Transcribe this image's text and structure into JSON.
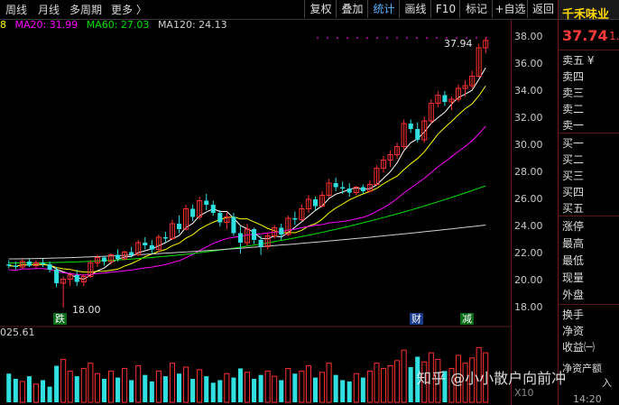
{
  "toolbar": {
    "tabs": [
      "周线",
      "月线",
      "多周期",
      "更多 〉"
    ],
    "buttons": [
      "复权",
      "叠加",
      "统计",
      "画线",
      "F10",
      "标记",
      "+自选",
      "返回"
    ],
    "active_button": "统计"
  },
  "ma": {
    "prefix": "8",
    "ma20": "MA20: 31.99",
    "ma60": "MA60: 27.03",
    "ma120": "MA120: 24.13",
    "colors": {
      "ma5": "#ffffff",
      "ma10": "#ffff00",
      "ma20": "#ff00ff",
      "ma60": "#00ff00",
      "ma120": "#cccccc"
    }
  },
  "price_axis": {
    "ticks": [
      "38.00",
      "36.00",
      "34.00",
      "32.00",
      "30.00",
      "28.00",
      "26.00",
      "24.00",
      "22.00",
      "20.00",
      "18.00"
    ]
  },
  "annotations": {
    "high_label": "37.94",
    "low_label": "18.00",
    "marker_die": "跌",
    "marker_cai": "财",
    "marker_jian": "减"
  },
  "quote": {
    "name": "千禾味业",
    "price": "37.74",
    "price_suffix": "1.",
    "ask_rows": [
      "卖五 ¥",
      "卖四",
      "卖三",
      "卖二",
      "卖一"
    ],
    "bid_rows": [
      "买一",
      "买二",
      "买三",
      "买四",
      "买五"
    ],
    "stat_rows": [
      "涨停",
      "最高",
      "最低",
      "现量",
      "外盘"
    ],
    "extra_rows": [
      "换手",
      "净资",
      "收益㈠"
    ],
    "bottom_rows": [
      "净资产额",
      "入"
    ],
    "time": "14:20"
  },
  "volume": {
    "label": "025.61",
    "scale": "X10"
  },
  "watermark": "知乎 @小小散户向前冲",
  "colors": {
    "up": "#ff3030",
    "down": "#30e0e0",
    "price": "#ff3a3a",
    "accent_blue": "#5ab4ff"
  },
  "chart_data": {
    "type": "candlestick",
    "y_range": [
      17.5,
      38.4
    ],
    "ohlc": [
      [
        21.2,
        21.5,
        20.9,
        21.1
      ],
      [
        21.1,
        21.4,
        20.8,
        21.0
      ],
      [
        21.0,
        21.6,
        20.9,
        21.4
      ],
      [
        21.4,
        21.6,
        21.0,
        21.1
      ],
      [
        21.1,
        21.5,
        20.9,
        21.3
      ],
      [
        21.3,
        21.6,
        21.0,
        21.2
      ],
      [
        21.2,
        21.4,
        20.6,
        20.8
      ],
      [
        20.8,
        21.0,
        19.5,
        19.8
      ],
      [
        19.8,
        20.3,
        18.0,
        20.1
      ],
      [
        20.1,
        20.6,
        19.6,
        20.4
      ],
      [
        20.4,
        20.8,
        19.6,
        19.9
      ],
      [
        19.9,
        20.5,
        19.6,
        20.3
      ],
      [
        20.3,
        21.5,
        20.2,
        21.3
      ],
      [
        21.3,
        21.9,
        21.0,
        21.7
      ],
      [
        21.7,
        21.8,
        21.1,
        21.4
      ],
      [
        21.4,
        22.0,
        21.2,
        21.9
      ],
      [
        21.9,
        22.3,
        21.4,
        21.6
      ],
      [
        21.6,
        22.2,
        21.5,
        22.1
      ],
      [
        22.1,
        22.5,
        21.7,
        21.9
      ],
      [
        21.9,
        23.0,
        21.8,
        22.8
      ],
      [
        22.8,
        23.2,
        22.3,
        22.6
      ],
      [
        22.6,
        23.0,
        22.0,
        22.3
      ],
      [
        22.3,
        23.4,
        22.1,
        23.2
      ],
      [
        23.2,
        23.6,
        22.8,
        23.1
      ],
      [
        23.1,
        24.5,
        23.0,
        24.2
      ],
      [
        24.2,
        24.8,
        23.5,
        23.8
      ],
      [
        23.8,
        25.6,
        23.7,
        25.3
      ],
      [
        25.3,
        25.6,
        24.4,
        24.7
      ],
      [
        24.7,
        26.2,
        24.5,
        25.9
      ],
      [
        25.9,
        26.4,
        25.2,
        25.6
      ],
      [
        25.6,
        25.9,
        24.8,
        25.0
      ],
      [
        25.0,
        25.2,
        24.0,
        24.3
      ],
      [
        24.3,
        25.0,
        23.8,
        24.7
      ],
      [
        24.7,
        25.0,
        23.3,
        23.5
      ],
      [
        23.5,
        24.0,
        22.0,
        22.8
      ],
      [
        22.8,
        24.2,
        22.6,
        23.8
      ],
      [
        23.8,
        23.9,
        22.7,
        23.0
      ],
      [
        23.0,
        23.3,
        21.9,
        22.5
      ],
      [
        22.5,
        23.5,
        22.3,
        23.3
      ],
      [
        23.3,
        24.1,
        23.1,
        23.9
      ],
      [
        23.9,
        24.2,
        23.0,
        23.4
      ],
      [
        23.4,
        24.8,
        23.3,
        24.6
      ],
      [
        24.6,
        25.1,
        24.1,
        24.5
      ],
      [
        24.5,
        25.6,
        24.4,
        25.3
      ],
      [
        25.3,
        26.3,
        25.0,
        26.0
      ],
      [
        26.0,
        26.2,
        25.2,
        25.5
      ],
      [
        25.5,
        26.6,
        25.4,
        26.3
      ],
      [
        26.3,
        27.5,
        26.1,
        27.2
      ],
      [
        27.2,
        27.6,
        26.6,
        26.9
      ],
      [
        26.9,
        27.3,
        26.4,
        26.8
      ],
      [
        26.8,
        27.2,
        26.2,
        26.5
      ],
      [
        26.5,
        27.0,
        26.3,
        26.9
      ],
      [
        26.9,
        27.1,
        26.4,
        26.6
      ],
      [
        26.6,
        27.4,
        26.5,
        27.1
      ],
      [
        27.1,
        28.5,
        27.0,
        28.3
      ],
      [
        28.3,
        29.2,
        28.0,
        28.9
      ],
      [
        28.9,
        29.6,
        28.4,
        29.3
      ],
      [
        29.3,
        30.2,
        29.0,
        29.9
      ],
      [
        29.9,
        31.9,
        29.7,
        31.6
      ],
      [
        31.6,
        31.9,
        30.9,
        31.2
      ],
      [
        31.2,
        31.7,
        30.2,
        30.4
      ],
      [
        30.4,
        32.1,
        30.2,
        31.8
      ],
      [
        31.8,
        33.4,
        31.6,
        33.1
      ],
      [
        33.1,
        34.0,
        32.8,
        33.7
      ],
      [
        33.7,
        34.0,
        32.9,
        33.2
      ],
      [
        33.2,
        33.6,
        32.6,
        33.4
      ],
      [
        33.4,
        34.5,
        33.2,
        34.2
      ],
      [
        34.2,
        34.8,
        33.6,
        34.4
      ],
      [
        34.4,
        35.5,
        34.2,
        35.1
      ],
      [
        35.1,
        37.5,
        35.0,
        37.2
      ],
      [
        37.2,
        37.94,
        36.8,
        37.74
      ]
    ],
    "volumes": [
      22,
      18,
      16,
      20,
      14,
      17,
      12,
      28,
      33,
      24,
      20,
      26,
      30,
      22,
      18,
      24,
      19,
      26,
      17,
      28,
      21,
      16,
      24,
      20,
      30,
      22,
      27,
      18,
      25,
      20,
      15,
      17,
      22,
      19,
      26,
      23,
      18,
      21,
      24,
      20,
      17,
      26,
      22,
      24,
      28,
      19,
      23,
      30,
      21,
      17,
      16,
      22,
      19,
      24,
      30,
      26,
      28,
      32,
      40,
      27,
      35,
      31,
      38,
      33,
      24,
      26,
      36,
      30,
      34,
      42,
      38
    ]
  }
}
